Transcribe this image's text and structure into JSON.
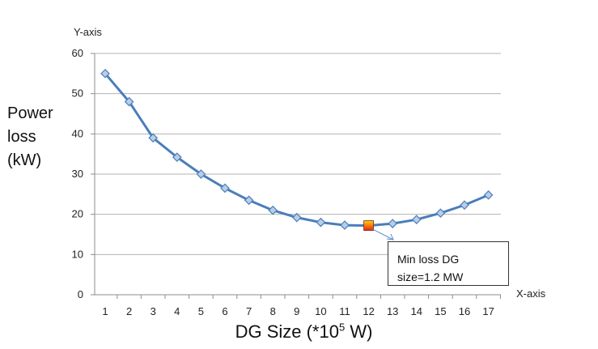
{
  "chart_data": {
    "type": "line",
    "x": [
      1,
      2,
      3,
      4,
      5,
      6,
      7,
      8,
      9,
      10,
      11,
      12,
      13,
      14,
      15,
      16,
      17
    ],
    "series": [
      {
        "values": [
          55,
          48,
          39,
          34.2,
          30,
          26.5,
          23.5,
          21,
          19.2,
          18,
          17.3,
          17.2,
          17.7,
          18.7,
          20.3,
          22.3,
          24.8
        ]
      }
    ],
    "highlight": {
      "x": 12,
      "y": 17.2
    },
    "ylim": [
      0,
      60
    ],
    "yticks": [
      0,
      10,
      20,
      30,
      40,
      50,
      60
    ],
    "xticks": [
      "1",
      "2",
      "3",
      "4",
      "5",
      "6",
      "7",
      "8",
      "9",
      "10",
      "11",
      "12",
      "13",
      "14",
      "15",
      "16",
      "17"
    ],
    "grid": "horizontal",
    "y_axis_title": "Y-axis",
    "x_axis_title": "X-axis",
    "ylabel_lines": [
      "Power",
      "loss",
      "(kW)"
    ],
    "xlabel": {
      "prefix": "DG Size (*10",
      "superscript": "5",
      "suffix": " W)"
    },
    "annotation_lines": [
      "Min loss DG",
      "size=1.2 MW"
    ],
    "colors": {
      "line": "#4a7ebb",
      "marker_fill": "#b9cde5",
      "marker_edge": "#4a7ebb",
      "grid": "#b3b3b3",
      "axis": "#8c8c8c",
      "highlight_top": "#ffd200",
      "highlight_bottom": "#e8231c"
    }
  }
}
